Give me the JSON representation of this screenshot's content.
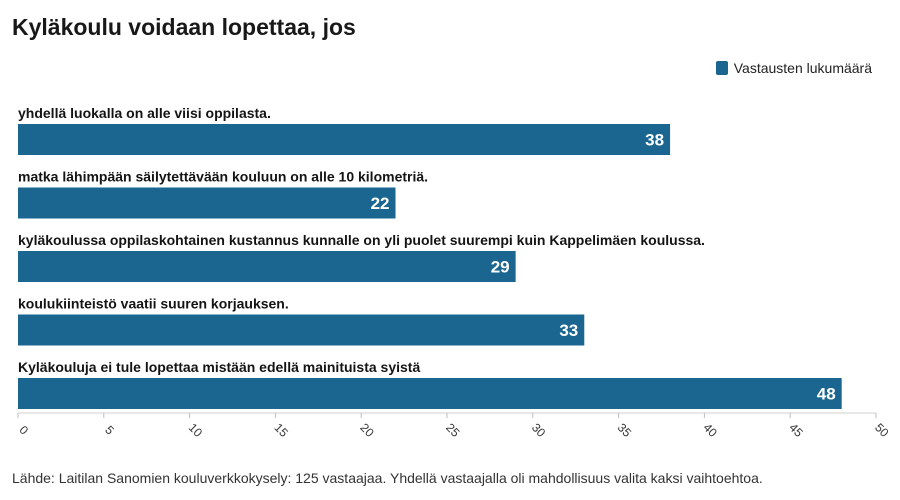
{
  "header": {
    "title": "Kyläkoulu voidaan lopettaa, jos"
  },
  "chart_data": {
    "type": "bar",
    "orientation": "horizontal",
    "title": "Kyläkoulu voidaan lopettaa, jos",
    "categories": [
      "yhdellä luokalla on alle viisi oppilasta.",
      "matka lähimpään säilytettävään kouluun on alle 10 kilometriä.",
      "kyläkoulussa oppilaskohtainen kustannus kunnalle on yli puolet suurempi kuin Kappelimäen koulussa.",
      "koulukiinteistö vaatii suuren korjauksen.",
      "Kyläkouluja ei tule lopettaa mistään edellä mainituista syistä"
    ],
    "series": [
      {
        "name": "Vastausten lukumäärä",
        "values": [
          38,
          22,
          29,
          33,
          48
        ],
        "color": "#1a6690"
      }
    ],
    "xlim": [
      0,
      50
    ],
    "xticks": [
      0,
      5,
      10,
      15,
      20,
      25,
      30,
      35,
      40,
      45,
      50
    ],
    "xlabel": "",
    "ylabel": "",
    "legend_position": "top-right",
    "grid": false
  },
  "footer": {
    "source": "Lähde: Laitilan Sanomien kouluverkkokysely: 125 vastaajaa. Yhdellä vastaajalla oli mahdollisuus valita kaksi vaihtoehtoa."
  }
}
